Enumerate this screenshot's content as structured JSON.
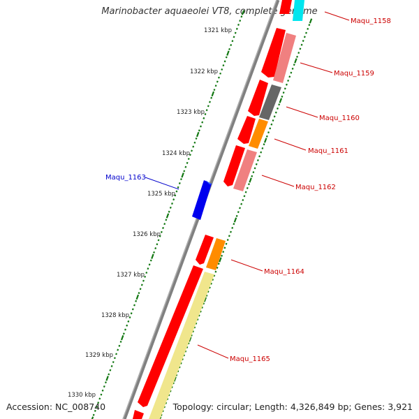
{
  "title": "Marinobacter aquaeolei VT8, complete genome",
  "footer": {
    "accession": "Accession: NC_008740",
    "summary": "Topology: circular; Length: 4,326,849 bp; Genes: 3,921"
  },
  "colors": {
    "forward_red": "#ff0000",
    "reverse_red": "#dd0000",
    "pink": "#f08080",
    "gray": "#666666",
    "orange": "#ff8c00",
    "pale_yellow": "#f0e68c",
    "blue": "#0000ee",
    "cyan": "#00e5ee",
    "backbone": "#808080",
    "tick_green": "#117711",
    "label_red": "#cc0000",
    "label_blue": "#0000cc"
  },
  "ticks": [
    "1321 kbp",
    "1322 kbp",
    "1323 kbp",
    "1324 kbp",
    "1325 kbp",
    "1326 kbp",
    "1327 kbp",
    "1328 kbp",
    "1329 kbp",
    "1330 kbp"
  ],
  "gene_labels": [
    {
      "text": "Maqu_1158",
      "strand": "forward"
    },
    {
      "text": "Maqu_1159",
      "strand": "forward"
    },
    {
      "text": "Maqu_1160",
      "strand": "forward"
    },
    {
      "text": "Maqu_1161",
      "strand": "forward"
    },
    {
      "text": "Maqu_1162",
      "strand": "forward"
    },
    {
      "text": "Maqu_1163",
      "strand": "reverse"
    },
    {
      "text": "Maqu_1164",
      "strand": "forward"
    },
    {
      "text": "Maqu_1165",
      "strand": "forward"
    }
  ]
}
